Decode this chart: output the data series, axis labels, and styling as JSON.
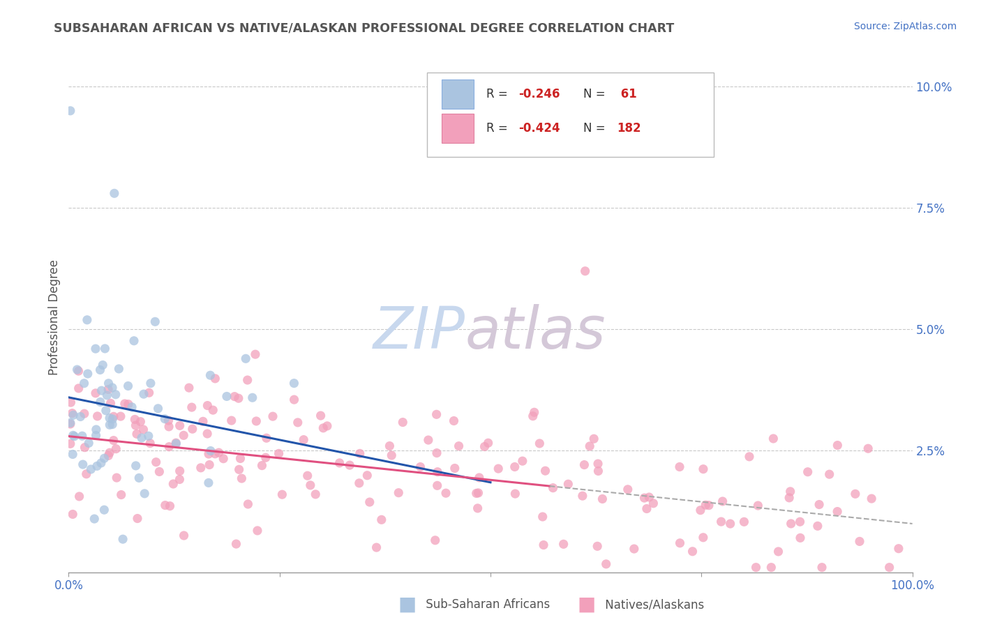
{
  "title": "SUBSAHARAN AFRICAN VS NATIVE/ALASKAN PROFESSIONAL DEGREE CORRELATION CHART",
  "source_text": "Source: ZipAtlas.com",
  "ylabel": "Professional Degree",
  "xlim": [
    0,
    1.0
  ],
  "ylim": [
    0,
    0.105
  ],
  "blue_scatter_color": "#aac4e0",
  "pink_scatter_color": "#f2a0bb",
  "blue_line_color": "#2255aa",
  "pink_line_color": "#e05080",
  "dash_line_color": "#aaaaaa",
  "background_color": "#ffffff",
  "grid_color": "#bbbbbb",
  "watermark_zip": "ZIP",
  "watermark_atlas": "atlas",
  "watermark_color_zip": "#c8d8ee",
  "watermark_color_atlas": "#d4c8d8",
  "title_color": "#555555",
  "axis_tick_color": "#4472c4",
  "source_color": "#4472c4",
  "legend_text_color": "#333333",
  "legend_r_color": "#cc2222",
  "legend_box_edge": "#bbbbbb",
  "blue_legend_fill": "#aac4e0",
  "pink_legend_fill": "#f2a0bb",
  "bottom_legend_color": "#555555"
}
